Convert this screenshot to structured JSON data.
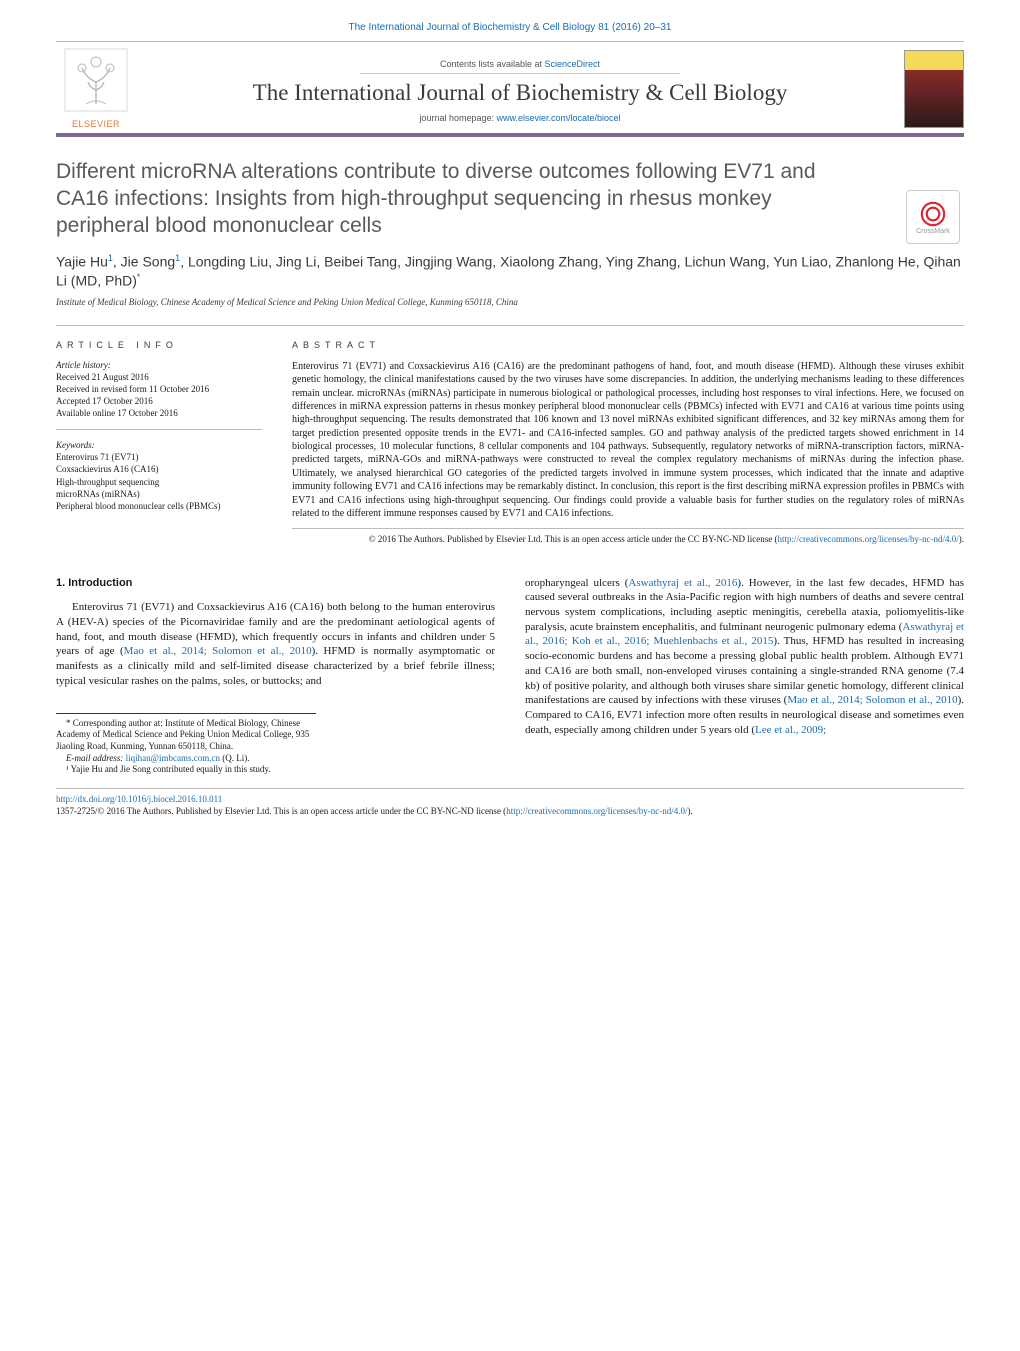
{
  "header": {
    "citation": "The International Journal of Biochemistry & Cell Biology 81 (2016) 20–31",
    "contents_prefix": "Contents lists available at ",
    "contents_link": "ScienceDirect",
    "journal_name": "The International Journal of Biochemistry & Cell Biology",
    "homepage_prefix": "journal homepage: ",
    "homepage_url": "www.elsevier.com/locate/biocel",
    "publisher": "ELSEVIER"
  },
  "crossmark_label": "CrossMark",
  "article": {
    "title": "Different microRNA alterations contribute to diverse outcomes following EV71 and CA16 infections: Insights from high-throughput sequencing in rhesus monkey peripheral blood mononuclear cells",
    "authors_html": "Yajie Hu<sup>1</sup>, Jie Song<sup>1</sup>, Longding Liu, Jing Li, Beibei Tang, Jingjing Wang, Xiaolong Zhang, Ying Zhang, Lichun Wang, Yun Liao, Zhanlong He, Qihan Li (MD, PhD)<sup>*</sup>",
    "affiliation": "Institute of Medical Biology, Chinese Academy of Medical Science and Peking Union Medical College, Kunming 650118, China"
  },
  "info": {
    "heading": "ARTICLE INFO",
    "history_label": "Article history:",
    "history": [
      "Received 21 August 2016",
      "Received in revised form 11 October 2016",
      "Accepted 17 October 2016",
      "Available online 17 October 2016"
    ],
    "keywords_label": "Keywords:",
    "keywords": [
      "Enterovirus 71 (EV71)",
      "Coxsackievirus A16 (CA16)",
      "High-throughput sequencing",
      "microRNAs (miRNAs)",
      "Peripheral blood mononuclear cells (PBMCs)"
    ]
  },
  "abstract": {
    "heading": "ABSTRACT",
    "text": "Enterovirus 71 (EV71) and Coxsackievirus A16 (CA16) are the predominant pathogens of hand, foot, and mouth disease (HFMD). Although these viruses exhibit genetic homology, the clinical manifestations caused by the two viruses have some discrepancies. In addition, the underlying mechanisms leading to these differences remain unclear. microRNAs (miRNAs) participate in numerous biological or pathological processes, including host responses to viral infections. Here, we focused on differences in miRNA expression patterns in rhesus monkey peripheral blood mononuclear cells (PBMCs) infected with EV71 and CA16 at various time points using high-throughput sequencing. The results demonstrated that 106 known and 13 novel miRNAs exhibited significant differences, and 32 key miRNAs among them for target prediction presented opposite trends in the EV71- and CA16-infected samples. GO and pathway analysis of the predicted targets showed enrichment in 14 biological processes, 10 molecular functions, 8 cellular components and 104 pathways. Subsequently, regulatory networks of miRNA-transcription factors, miRNA-predicted targets, miRNA-GOs and miRNA-pathways were constructed to reveal the complex regulatory mechanisms of miRNAs during the infection phase. Ultimately, we analysed hierarchical GO categories of the predicted targets involved in immune system processes, which indicated that the innate and adaptive immunity following EV71 and CA16 infections may be remarkably distinct. In conclusion, this report is the first describing miRNA expression profiles in PBMCs with EV71 and CA16 infections using high-throughput sequencing. Our findings could provide a valuable basis for further studies on the regulatory roles of miRNAs related to the different immune responses caused by EV71 and CA16 infections.",
    "copyright": "© 2016 The Authors. Published by Elsevier Ltd. This is an open access article under the CC BY-NC-ND license (",
    "license_url": "http://creativecommons.org/licenses/by-nc-nd/4.0/",
    "copyright_close": ")."
  },
  "body": {
    "section_heading": "1. Introduction",
    "col1_p1_a": "Enterovirus 71 (EV71) and Coxsackievirus A16 (CA16) both belong to the human enterovirus A (HEV-A) species of the Picornaviridae family and are the predominant aetiological agents of hand, foot, and mouth disease (HFMD), which frequently occurs in infants and children under 5 years of age (",
    "col1_link1": "Mao et al., 2014; Solomon et al., 2010",
    "col1_p1_b": "). HFMD is normally asymptomatic or manifests as a clinically mild and self-limited disease characterized by a brief febrile illness; typical vesicular rashes on the palms, soles, or buttocks; and",
    "col2_p1_a": "oropharyngeal ulcers (",
    "col2_link1": "Aswathyraj et al., 2016",
    "col2_p1_b": "). However, in the last few decades, HFMD has caused several outbreaks in the Asia-Pacific region with high numbers of deaths and severe central nervous system complications, including aseptic meningitis, cerebella ataxia, poliomyelitis-like paralysis, acute brainstem encephalitis, and fulminant neurogenic pulmonary edema (",
    "col2_link2": "Aswathyraj et al., 2016; Koh et al., 2016; Muehlenbachs et al., 2015",
    "col2_p1_c": "). Thus, HFMD has resulted in increasing socio-economic burdens and has become a pressing global public health problem. Although EV71 and CA16 are both small, non-enveloped viruses containing a single-stranded RNA genome (7.4 kb) of positive polarity, and although both viruses share similar genetic homology, different clinical manifestations are caused by infections with these viruses (",
    "col2_link3": "Mao et al., 2014; Solomon et al., 2010",
    "col2_p1_d": "). Compared to CA16, EV71 infection more often results in neurological disease and sometimes even death, especially among children under 5 years old (",
    "col2_link4": "Lee et al., 2009;"
  },
  "footnotes": {
    "corr": "* Corresponding author at: Institute of Medical Biology, Chinese Academy of Medical Science and Peking Union Medical College, 935 Jiaoling Road, Kunming, Yunnan 650118, China.",
    "email_label": "E-mail address: ",
    "email": "liqihan@imbcams.com.cn",
    "email_suffix": " (Q. Li).",
    "equal": "¹ Yajie Hu and Jie Song contributed equally in this study."
  },
  "footer": {
    "doi": "http://dx.doi.org/10.1016/j.biocel.2016.10.011",
    "issn_line_a": "1357-2725/© 2016 The Authors. Published by Elsevier Ltd. This is an open access article under the CC BY-NC-ND license (",
    "license_url": "http://creativecommons.org/licenses/by-nc-nd/4.0/",
    "issn_line_b": ")."
  },
  "colors": {
    "link": "#1a6bb3",
    "rule": "#bbbbbb",
    "masthead_rule": "#7a6a8f",
    "elsevier": "#e8762d",
    "text": "#1a1a1a",
    "muted": "#555555",
    "title_gray": "#5a5a5a"
  },
  "typography": {
    "body_pt": 11,
    "abstract_pt": 10,
    "small_pt": 9,
    "title_pt": 21,
    "journal_pt": 23,
    "authors_pt": 14
  }
}
